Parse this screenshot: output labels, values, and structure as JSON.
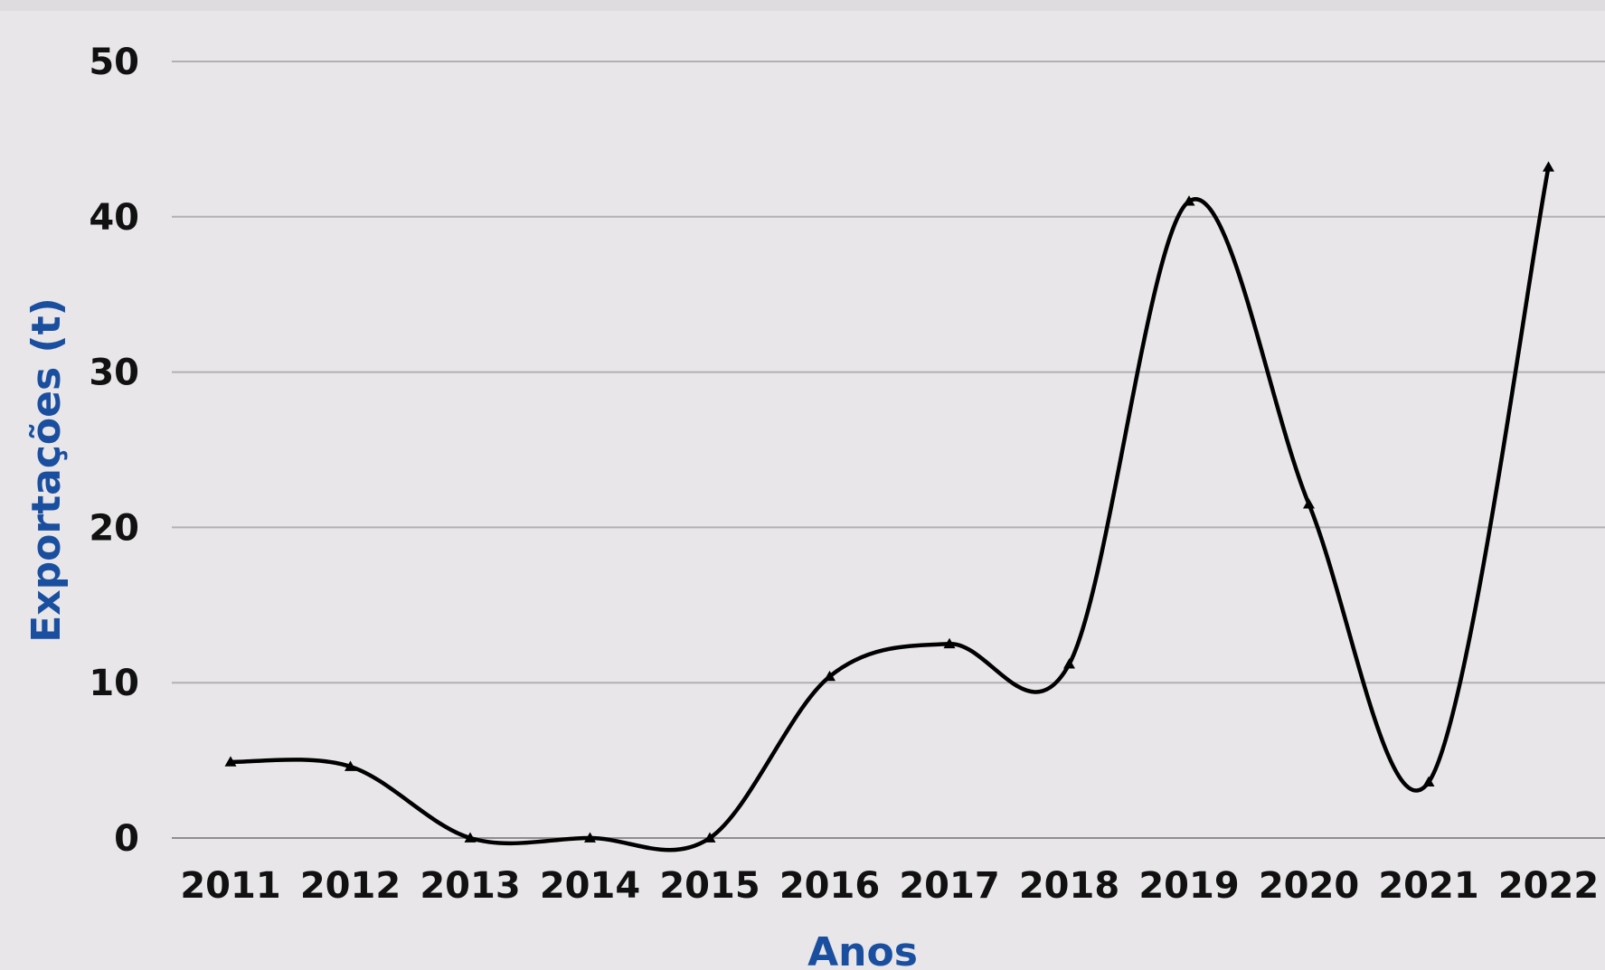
{
  "chart_data": {
    "type": "line",
    "xlabel": "Anos",
    "ylabel": "Exportações (t)",
    "categories": [
      "2011",
      "2012",
      "2013",
      "2014",
      "2015",
      "2016",
      "2017",
      "2018",
      "2019",
      "2020",
      "2021",
      "2022"
    ],
    "series": [
      {
        "values": [
          4.9,
          4.6,
          0,
          0,
          0,
          10.4,
          12.5,
          11.2,
          41.0,
          21.5,
          3.6,
          43.2
        ]
      }
    ],
    "ylim": [
      0,
      50
    ],
    "yticks": [
      0,
      10,
      20,
      30,
      40,
      50
    ],
    "grid": true,
    "legend": "none",
    "marker": "triangle",
    "smooth": true,
    "colors": {
      "line": "#000000",
      "grid": "#b2b0b3",
      "axis_title": "#1a4fa0",
      "tick_label": "#111111",
      "background": "#e8e6e9"
    }
  }
}
